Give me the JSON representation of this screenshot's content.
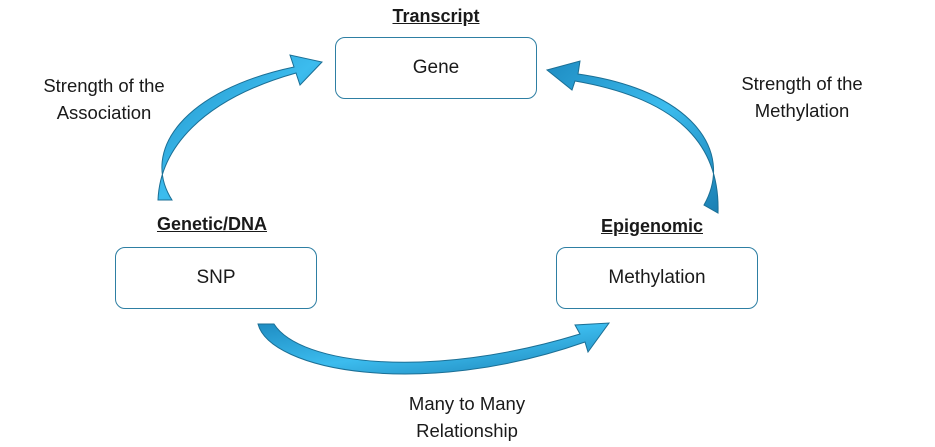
{
  "nodes": {
    "gene": {
      "heading": "Transcript",
      "label": "Gene"
    },
    "snp": {
      "heading": "Genetic/DNA",
      "label": "SNP"
    },
    "methylation": {
      "heading": "Epigenomic",
      "label": "Methylation"
    }
  },
  "edges": {
    "snp_to_gene": {
      "label_line1": "Strength of the",
      "label_line2": "Association"
    },
    "methylation_to_gene": {
      "label_line1": "Strength of the",
      "label_line2": "Methylation"
    },
    "snp_to_methylation": {
      "label_line1": "Many to Many",
      "label_line2": "Relationship"
    }
  },
  "colors": {
    "arrow_fill": "#2aa8e0",
    "arrow_stroke": "#1b6f95",
    "box_border": "#2e7fa3"
  }
}
